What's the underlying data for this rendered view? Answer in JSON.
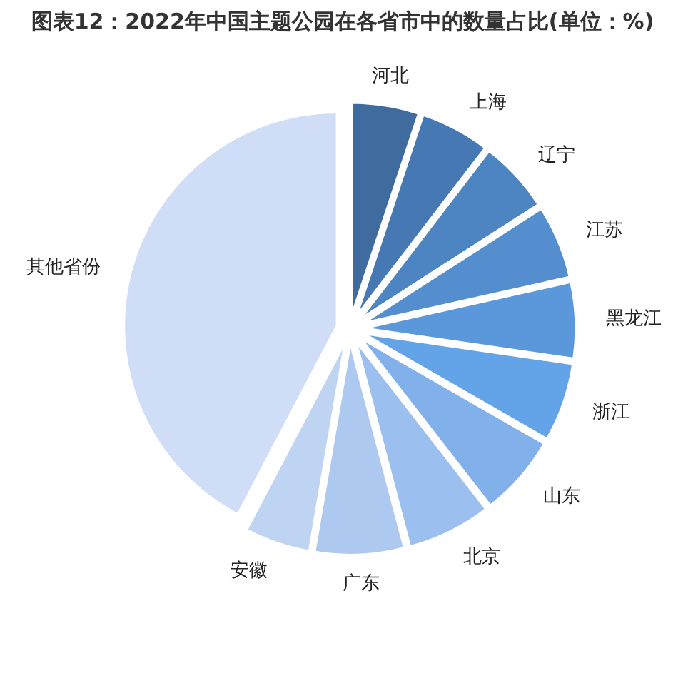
{
  "chart_data": {
    "type": "pie",
    "title": "图表12：2022年中国主题公园在各省市中的数量占比(单位：%)",
    "categories": [
      "河北",
      "上海",
      "辽宁",
      "江苏",
      "黑龙江",
      "浙江",
      "山东",
      "北京",
      "广东",
      "安徽",
      "其他省份"
    ],
    "values": [
      5.1,
      5.3,
      5.5,
      5.6,
      5.8,
      6.0,
      6.2,
      6.4,
      6.8,
      5.0,
      42.3
    ],
    "colors": [
      "#3f6b9e",
      "#4679b3",
      "#4d84c2",
      "#548ecf",
      "#5b98db",
      "#63a3e8",
      "#82b0ea",
      "#9bbfee",
      "#aec9f0",
      "#bfd3f3",
      "#cfddf6"
    ]
  }
}
